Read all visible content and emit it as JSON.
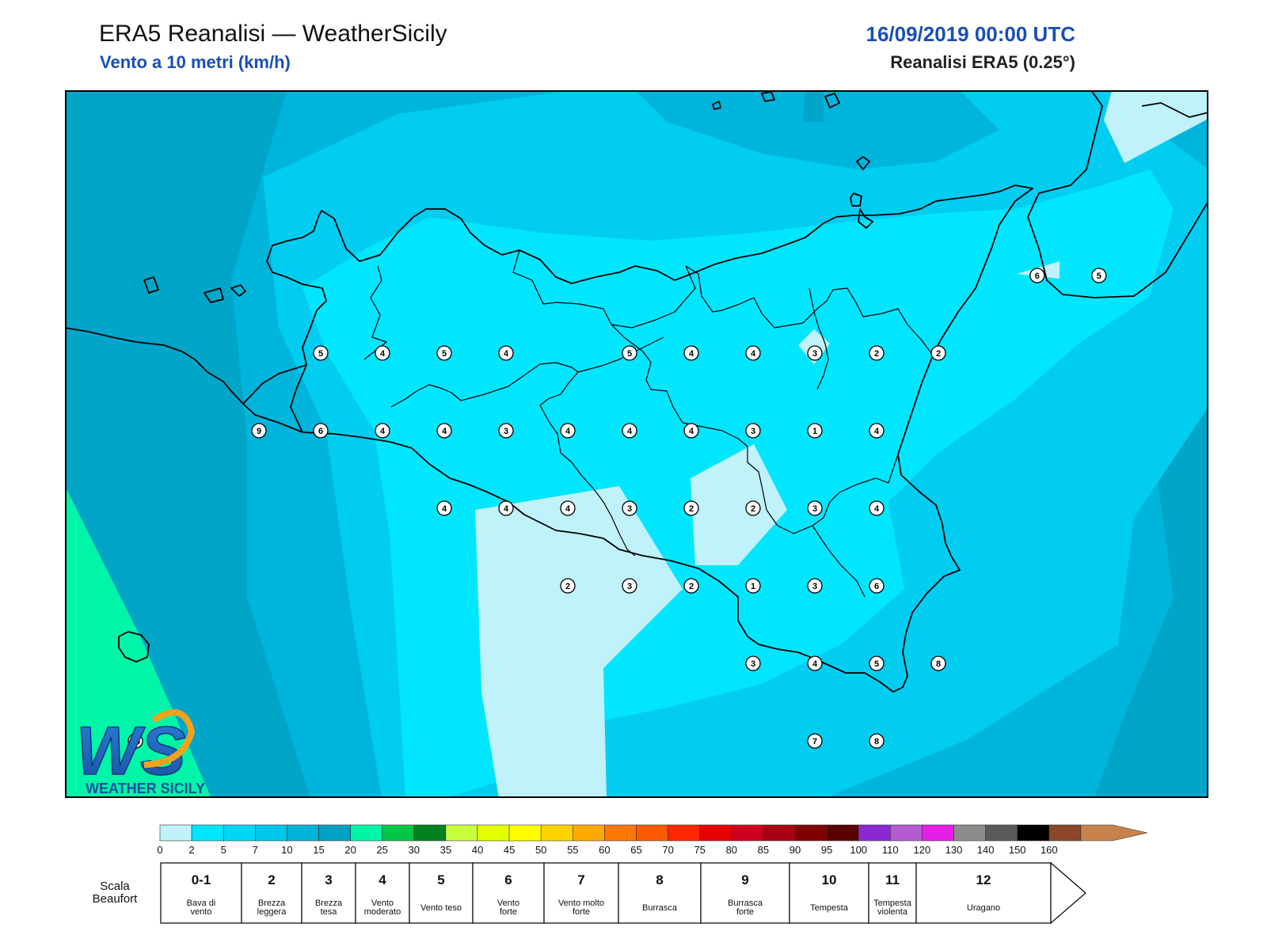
{
  "header": {
    "title": "ERA5 Reanalisi — WeatherSicily",
    "subtitle": "Vento a 10 metri (km/h)",
    "datetime": "16/09/2019 00:00 UTC",
    "source": "Reanalisi ERA5 (0.25°)"
  },
  "logo": {
    "text": "WEATHER SICILY",
    "letters": "WS"
  },
  "zone_colors": {
    "very_light": "#bff2fa",
    "light": "#00e6ff",
    "mid": "#00cdf0",
    "mid_dark": "#00b5dc",
    "dark": "#00a5c8",
    "green": "#00f5a8"
  },
  "wind_markers": [
    {
      "v": "6",
      "lon": 15.65,
      "lat": 38.25
    },
    {
      "v": "5",
      "lon": 15.9,
      "lat": 38.25
    },
    {
      "v": "5",
      "lon": 12.75,
      "lat": 38.0
    },
    {
      "v": "4",
      "lon": 13.0,
      "lat": 38.0
    },
    {
      "v": "5",
      "lon": 13.25,
      "lat": 38.0
    },
    {
      "v": "4",
      "lon": 13.5,
      "lat": 38.0
    },
    {
      "v": "5",
      "lon": 14.0,
      "lat": 38.0
    },
    {
      "v": "4",
      "lon": 14.25,
      "lat": 38.0
    },
    {
      "v": "4",
      "lon": 14.5,
      "lat": 38.0
    },
    {
      "v": "3",
      "lon": 14.75,
      "lat": 38.0
    },
    {
      "v": "2",
      "lon": 15.0,
      "lat": 38.0
    },
    {
      "v": "2",
      "lon": 15.25,
      "lat": 38.0
    },
    {
      "v": "9",
      "lon": 12.5,
      "lat": 37.75
    },
    {
      "v": "6",
      "lon": 12.75,
      "lat": 37.75
    },
    {
      "v": "4",
      "lon": 13.0,
      "lat": 37.75
    },
    {
      "v": "4",
      "lon": 13.25,
      "lat": 37.75
    },
    {
      "v": "3",
      "lon": 13.5,
      "lat": 37.75
    },
    {
      "v": "4",
      "lon": 13.75,
      "lat": 37.75
    },
    {
      "v": "4",
      "lon": 14.0,
      "lat": 37.75
    },
    {
      "v": "4",
      "lon": 14.25,
      "lat": 37.75
    },
    {
      "v": "3",
      "lon": 14.5,
      "lat": 37.75
    },
    {
      "v": "1",
      "lon": 14.75,
      "lat": 37.75
    },
    {
      "v": "4",
      "lon": 15.0,
      "lat": 37.75
    },
    {
      "v": "4",
      "lon": 13.25,
      "lat": 37.5
    },
    {
      "v": "4",
      "lon": 13.5,
      "lat": 37.5
    },
    {
      "v": "4",
      "lon": 13.75,
      "lat": 37.5
    },
    {
      "v": "3",
      "lon": 14.0,
      "lat": 37.5
    },
    {
      "v": "2",
      "lon": 14.25,
      "lat": 37.5
    },
    {
      "v": "2",
      "lon": 14.5,
      "lat": 37.5
    },
    {
      "v": "3",
      "lon": 14.75,
      "lat": 37.5
    },
    {
      "v": "4",
      "lon": 15.0,
      "lat": 37.5
    },
    {
      "v": "2",
      "lon": 13.75,
      "lat": 37.25
    },
    {
      "v": "3",
      "lon": 14.0,
      "lat": 37.25
    },
    {
      "v": "2",
      "lon": 14.25,
      "lat": 37.25
    },
    {
      "v": "1",
      "lon": 14.5,
      "lat": 37.25
    },
    {
      "v": "3",
      "lon": 14.75,
      "lat": 37.25
    },
    {
      "v": "6",
      "lon": 15.0,
      "lat": 37.25
    },
    {
      "v": "3",
      "lon": 14.5,
      "lat": 37.0
    },
    {
      "v": "4",
      "lon": 14.75,
      "lat": 37.0
    },
    {
      "v": "5",
      "lon": 15.0,
      "lat": 37.0
    },
    {
      "v": "8",
      "lon": 15.25,
      "lat": 37.0
    },
    {
      "v": "7",
      "lon": 14.75,
      "lat": 36.75
    },
    {
      "v": "8",
      "lon": 15.0,
      "lat": 36.75
    },
    {
      "v": "16",
      "lon": 12.0,
      "lat": 36.75
    }
  ],
  "colorbar": {
    "ticks": [
      "0",
      "2",
      "5",
      "7",
      "10",
      "15",
      "20",
      "25",
      "30",
      "35",
      "40",
      "45",
      "50",
      "55",
      "60",
      "65",
      "70",
      "75",
      "80",
      "85",
      "90",
      "95",
      "100",
      "110",
      "120",
      "130",
      "140",
      "150",
      "160"
    ],
    "colors": [
      "#bff2fa",
      "#00e6ff",
      "#00d7f7",
      "#00c6eb",
      "#00b3d8",
      "#00a1c2",
      "#00f5a8",
      "#00c846",
      "#00821e",
      "#c8ff3c",
      "#e6ff00",
      "#ffff00",
      "#ffd200",
      "#ffaa00",
      "#ff7800",
      "#ff5a00",
      "#ff2800",
      "#e60000",
      "#cd001e",
      "#aa0014",
      "#820000",
      "#5a0000",
      "#8c28d2",
      "#b45ad2",
      "#e61ee6",
      "#8c8c8c",
      "#5a5a5a",
      "#000000",
      "#8c4628",
      "#c8824b"
    ]
  },
  "beaufort": {
    "title_line1": "Scala",
    "title_line2": "Beaufort",
    "cells": [
      {
        "num": "0-1",
        "l1": "Bava di",
        "l2": "vento"
      },
      {
        "num": "2",
        "l1": "Brezza",
        "l2": "leggera"
      },
      {
        "num": "3",
        "l1": "Brezza",
        "l2": "tesa"
      },
      {
        "num": "4",
        "l1": "Vento",
        "l2": "moderato"
      },
      {
        "num": "5",
        "l1": "Vento teso",
        "l2": ""
      },
      {
        "num": "6",
        "l1": "Vento",
        "l2": "forte"
      },
      {
        "num": "7",
        "l1": "Vento molto",
        "l2": "forte"
      },
      {
        "num": "8",
        "l1": "Burrasca",
        "l2": ""
      },
      {
        "num": "9",
        "l1": "Burrasca",
        "l2": "forte"
      },
      {
        "num": "10",
        "l1": "Tempesta",
        "l2": ""
      },
      {
        "num": "11",
        "l1": "Tempesta",
        "l2": "violenta"
      },
      {
        "num": "12",
        "l1": "Uragano",
        "l2": ""
      }
    ]
  }
}
